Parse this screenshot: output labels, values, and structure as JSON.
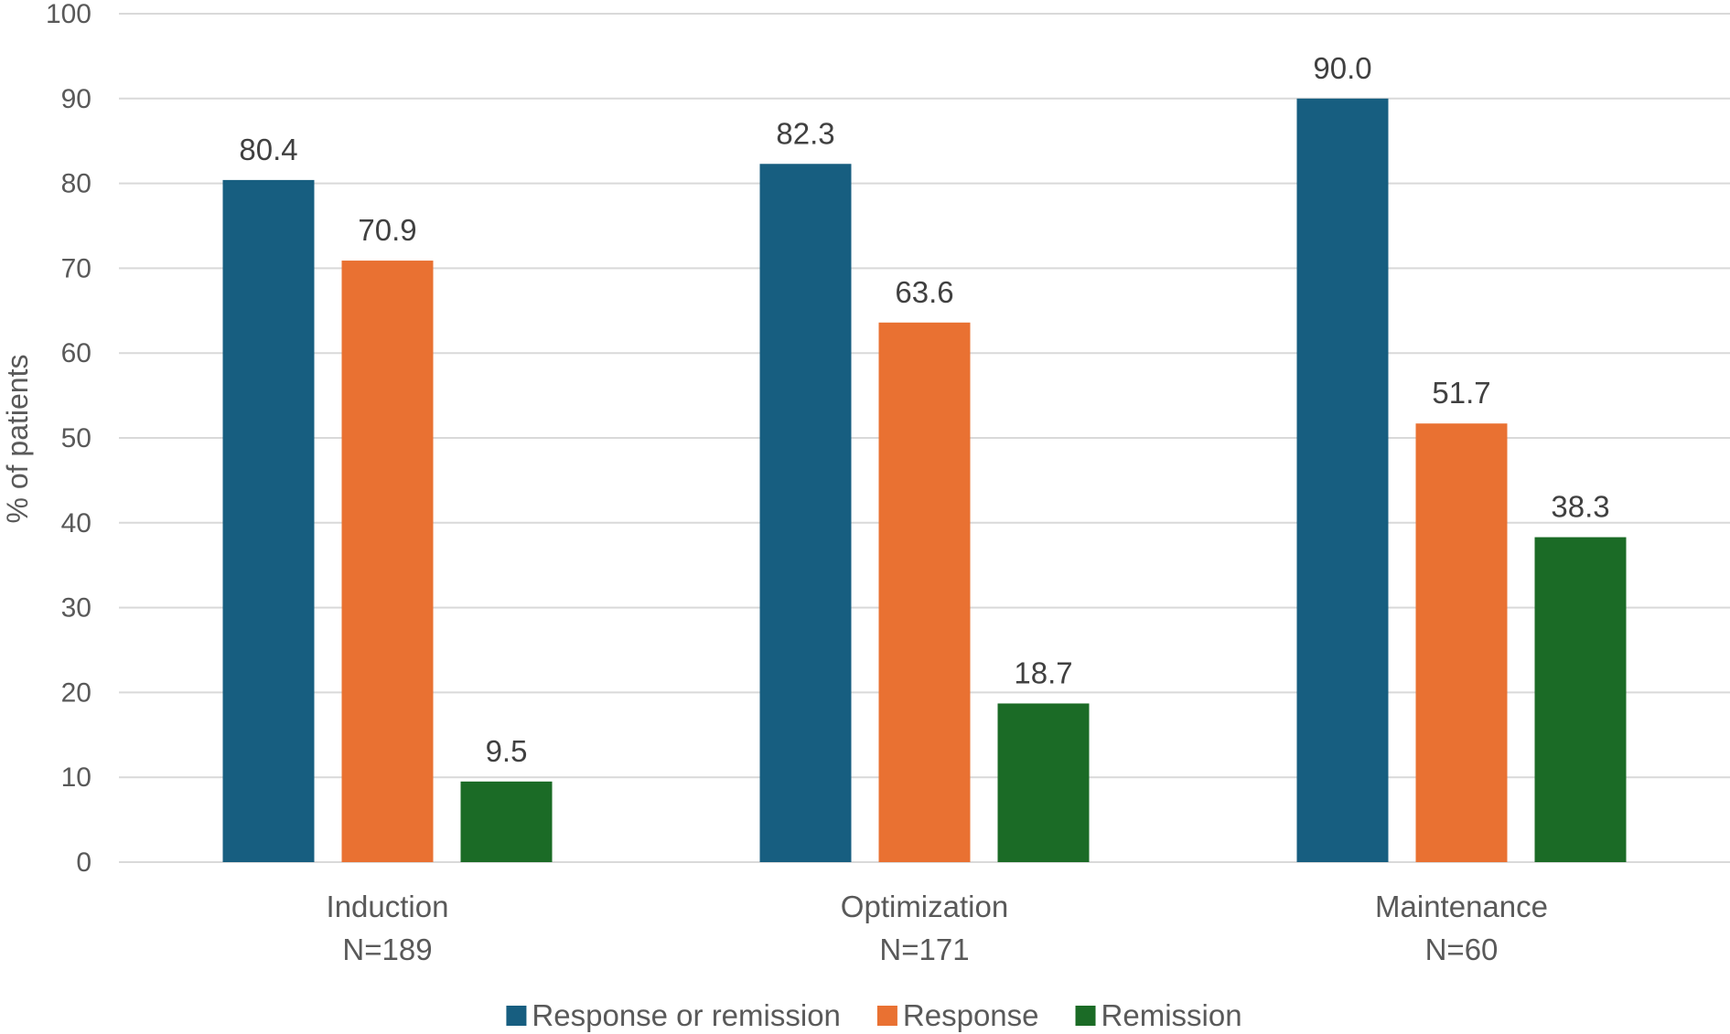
{
  "chart_data": {
    "type": "bar",
    "ylabel": "% of patients",
    "ylim": [
      0,
      100
    ],
    "yticks": [
      0,
      10,
      20,
      30,
      40,
      50,
      60,
      70,
      80,
      90,
      100
    ],
    "grid": true,
    "legend_position": "bottom",
    "categories": [
      {
        "label": "Induction",
        "sublabel": "N=189"
      },
      {
        "label": "Optimization",
        "sublabel": "N=171"
      },
      {
        "label": "Maintenance",
        "sublabel": "N=60"
      }
    ],
    "series": [
      {
        "name": "Response or remission",
        "color": "#175E80",
        "values": [
          80.4,
          82.3,
          90.0
        ],
        "labels": [
          "80.4",
          "82.3",
          "90.0"
        ]
      },
      {
        "name": "Response",
        "color": "#E97132",
        "values": [
          70.9,
          63.6,
          51.7
        ],
        "labels": [
          "70.9",
          "63.6",
          "51.7"
        ]
      },
      {
        "name": "Remission",
        "color": "#1B6B26",
        "values": [
          9.5,
          18.7,
          38.3
        ],
        "labels": [
          "9.5",
          "18.7",
          "38.3"
        ]
      }
    ]
  }
}
